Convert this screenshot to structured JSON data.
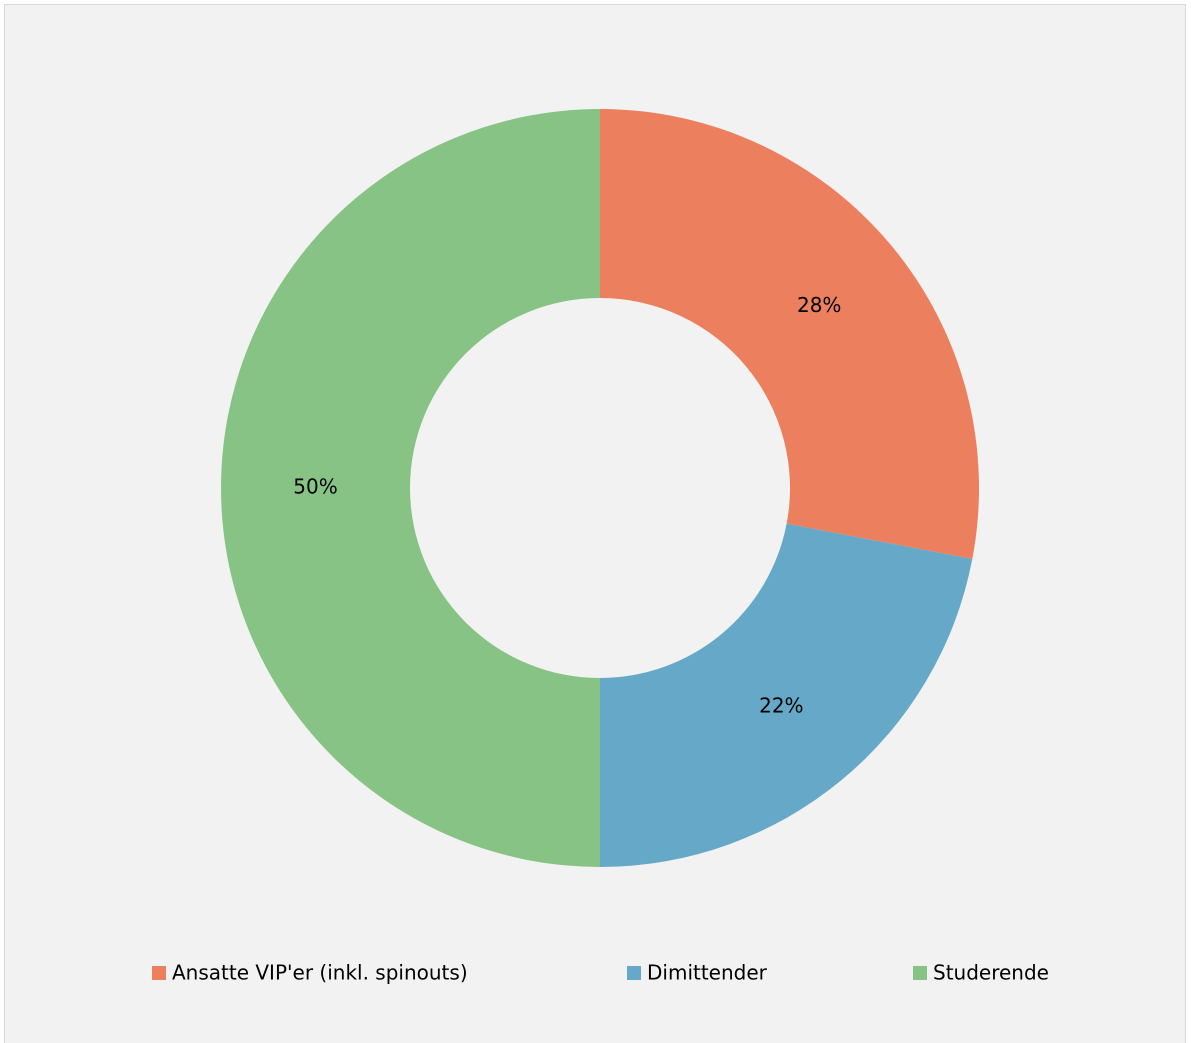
{
  "chart_data": {
    "type": "donut",
    "categories": [
      "Ansatte VIP'er (inkl. spinouts)",
      "Dimittender",
      "Studerende"
    ],
    "values": [
      28,
      22,
      50
    ],
    "value_labels": [
      "28%",
      "22%",
      "50%"
    ],
    "colors": [
      "#eb7f5e",
      "#66a8c8",
      "#86c385"
    ],
    "legend": "bottom"
  }
}
